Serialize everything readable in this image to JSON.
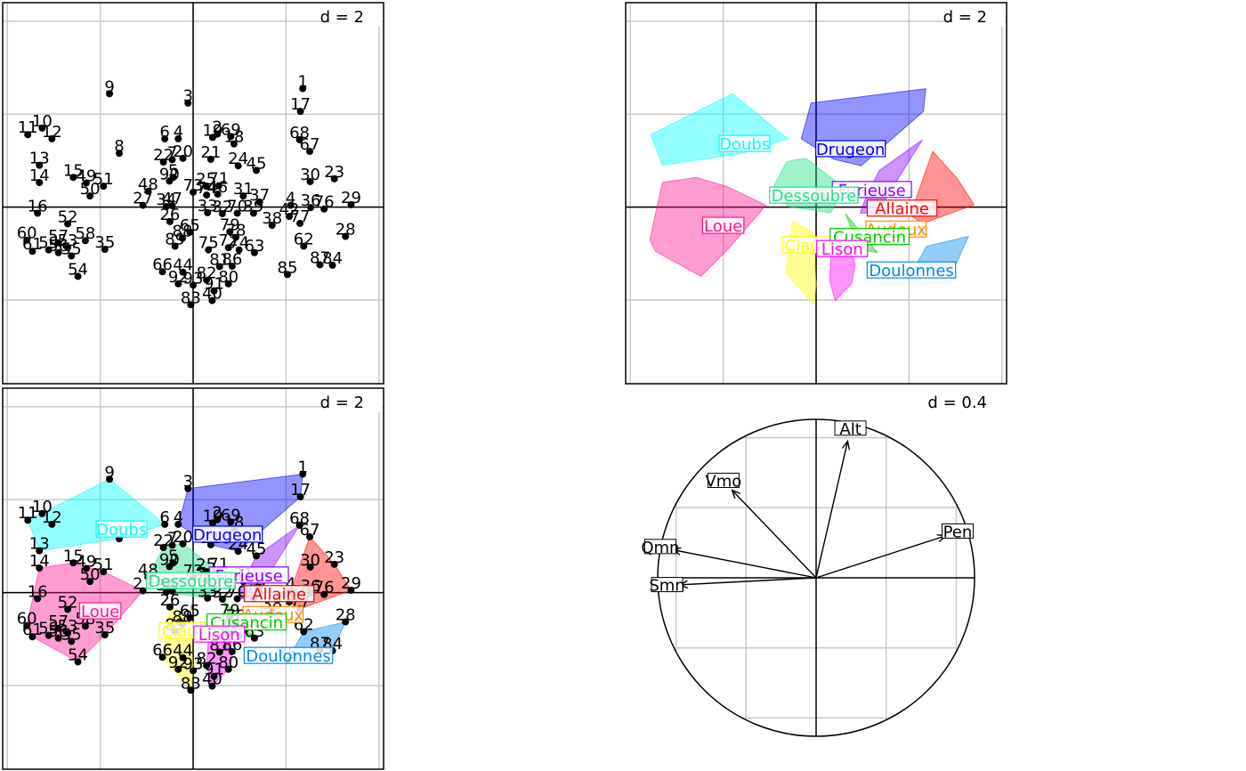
{
  "chart_data": [
    {
      "type": "scatter",
      "panel": "row scores",
      "scale_label": "d = 2",
      "grid": true,
      "xlim": [
        -4.1,
        4.1
      ],
      "ylim": [
        -3.8,
        4.4
      ],
      "points": [
        {
          "label": "1",
          "x": 2.36,
          "y": 2.55
        },
        {
          "label": "3",
          "x": -0.11,
          "y": 2.24
        },
        {
          "label": "9",
          "x": -1.8,
          "y": 2.44
        },
        {
          "label": "17",
          "x": 2.31,
          "y": 2.06
        },
        {
          "label": "10",
          "x": -3.25,
          "y": 1.7
        },
        {
          "label": "11",
          "x": -3.56,
          "y": 1.56
        },
        {
          "label": "12",
          "x": -3.04,
          "y": 1.47
        },
        {
          "label": "8",
          "x": -1.59,
          "y": 1.16
        },
        {
          "label": "6",
          "x": -0.61,
          "y": 1.47
        },
        {
          "label": "4",
          "x": -0.32,
          "y": 1.47
        },
        {
          "label": "7",
          "x": -0.45,
          "y": 1.02
        },
        {
          "label": "20",
          "x": -0.22,
          "y": 1.05
        },
        {
          "label": "2",
          "x": 0.52,
          "y": 1.57
        },
        {
          "label": "69",
          "x": 0.81,
          "y": 1.52
        },
        {
          "label": "19",
          "x": 0.42,
          "y": 1.5
        },
        {
          "label": "18",
          "x": 0.88,
          "y": 1.36
        },
        {
          "label": "68",
          "x": 2.29,
          "y": 1.45
        },
        {
          "label": "67",
          "x": 2.51,
          "y": 1.2
        },
        {
          "label": "21",
          "x": 0.38,
          "y": 1.03
        },
        {
          "label": "24",
          "x": 0.97,
          "y": 0.89
        },
        {
          "label": "45",
          "x": 1.36,
          "y": 0.79
        },
        {
          "label": "22",
          "x": -0.64,
          "y": 0.97
        },
        {
          "label": "5",
          "x": -0.43,
          "y": 0.64
        },
        {
          "label": "13",
          "x": -3.31,
          "y": 0.9
        },
        {
          "label": "14",
          "x": -3.31,
          "y": 0.53
        },
        {
          "label": "15",
          "x": -2.58,
          "y": 0.64
        },
        {
          "label": "49",
          "x": -2.3,
          "y": 0.52
        },
        {
          "label": "51",
          "x": -1.93,
          "y": 0.45
        },
        {
          "label": "50",
          "x": -2.22,
          "y": 0.24
        },
        {
          "label": "48",
          "x": -0.97,
          "y": 0.34
        },
        {
          "label": "90",
          "x": -0.51,
          "y": 0.56
        },
        {
          "label": "25",
          "x": 0.28,
          "y": 0.45
        },
        {
          "label": "71",
          "x": 0.55,
          "y": 0.46
        },
        {
          "label": "30",
          "x": 2.52,
          "y": 0.55
        },
        {
          "label": "23",
          "x": 3.04,
          "y": 0.61
        },
        {
          "label": "16",
          "x": -3.35,
          "y": -0.13
        },
        {
          "label": "52",
          "x": -2.7,
          "y": -0.36
        },
        {
          "label": "27",
          "x": -1.08,
          "y": 0.04
        },
        {
          "label": "34",
          "x": -0.58,
          "y": 0.01
        },
        {
          "label": "47",
          "x": -0.45,
          "y": 0.03
        },
        {
          "label": "73",
          "x": 0.0,
          "y": 0.32
        },
        {
          "label": "74",
          "x": 0.29,
          "y": 0.26
        },
        {
          "label": "46",
          "x": 0.53,
          "y": 0.28
        },
        {
          "label": "31",
          "x": 1.08,
          "y": 0.24
        },
        {
          "label": "37",
          "x": 1.43,
          "y": 0.11
        },
        {
          "label": "4b",
          "x": 2.1,
          "y": 0.04
        },
        {
          "label": "36",
          "x": 2.53,
          "y": -0.01
        },
        {
          "label": "29",
          "x": 3.4,
          "y": 0.05
        },
        {
          "label": "26",
          "x": -0.5,
          "y": -0.31
        },
        {
          "label": "33",
          "x": 0.31,
          "y": -0.12
        },
        {
          "label": "32",
          "x": 0.63,
          "y": -0.14
        },
        {
          "label": "70",
          "x": 0.95,
          "y": -0.13
        },
        {
          "label": "39",
          "x": 1.3,
          "y": -0.13
        },
        {
          "label": "42",
          "x": 2.07,
          "y": -0.2
        },
        {
          "label": "76",
          "x": 2.82,
          "y": -0.04
        },
        {
          "label": "38",
          "x": 1.7,
          "y": -0.39
        },
        {
          "label": "77",
          "x": 2.3,
          "y": -0.35
        },
        {
          "label": "28",
          "x": 3.28,
          "y": -0.63
        },
        {
          "label": "62",
          "x": 2.38,
          "y": -0.84
        },
        {
          "label": "60",
          "x": -3.58,
          "y": -0.71
        },
        {
          "label": "61",
          "x": -3.46,
          "y": -0.95
        },
        {
          "label": "57",
          "x": -2.9,
          "y": -0.77
        },
        {
          "label": "53",
          "x": -2.7,
          "y": -0.87
        },
        {
          "label": "58",
          "x": -2.32,
          "y": -0.72
        },
        {
          "label": "59",
          "x": -3.11,
          "y": -0.92
        },
        {
          "label": "55",
          "x": -2.62,
          "y": -1.05
        },
        {
          "label": "56",
          "x": -2.9,
          "y": -0.98
        },
        {
          "label": "35",
          "x": -1.9,
          "y": -0.91
        },
        {
          "label": "89",
          "x": -0.39,
          "y": -0.84
        },
        {
          "label": "88",
          "x": -0.23,
          "y": -0.67
        },
        {
          "label": "65",
          "x": -0.07,
          "y": -0.54
        },
        {
          "label": "79",
          "x": 0.79,
          "y": -0.53
        },
        {
          "label": "78",
          "x": 0.92,
          "y": -0.65
        },
        {
          "label": "75",
          "x": 0.33,
          "y": -0.92
        },
        {
          "label": "72",
          "x": 0.76,
          "y": -0.87
        },
        {
          "label": "74b",
          "x": 0.99,
          "y": -0.92
        },
        {
          "label": "63",
          "x": 1.32,
          "y": -0.98
        },
        {
          "label": "54",
          "x": -2.48,
          "y": -1.49
        },
        {
          "label": "66",
          "x": -0.66,
          "y": -1.39
        },
        {
          "label": "44",
          "x": -0.22,
          "y": -1.4
        },
        {
          "label": "81",
          "x": 0.57,
          "y": -1.28
        },
        {
          "label": "86",
          "x": 0.84,
          "y": -1.27
        },
        {
          "label": "92",
          "x": -0.32,
          "y": -1.65
        },
        {
          "label": "82",
          "x": 0.29,
          "y": -1.57
        },
        {
          "label": "80",
          "x": 0.76,
          "y": -1.65
        },
        {
          "label": "93",
          "x": 0.0,
          "y": -1.68
        },
        {
          "label": "91",
          "x": 0.45,
          "y": -1.8
        },
        {
          "label": "83",
          "x": -0.05,
          "y": -2.1
        },
        {
          "label": "40",
          "x": 0.41,
          "y": -2.01
        },
        {
          "label": "85",
          "x": 2.03,
          "y": -1.45
        },
        {
          "label": "87",
          "x": 2.73,
          "y": -1.24
        },
        {
          "label": "84",
          "x": 3.0,
          "y": -1.25
        }
      ]
    },
    {
      "type": "scatter",
      "panel": "group convex hulls",
      "scale_label": "d = 2",
      "grid": true,
      "xlim": [
        -4.1,
        4.1
      ],
      "ylim": [
        -3.8,
        4.4
      ],
      "groups": [
        {
          "name": "Doubs",
          "color": "#00FFFF",
          "center": [
            -1.54,
            1.35
          ]
        },
        {
          "name": "Drugeon",
          "color": "#0000FF",
          "center": [
            0.74,
            1.24
          ]
        },
        {
          "name": "Furieuse",
          "color": "#8800FF",
          "center": [
            1.2,
            0.36
          ]
        },
        {
          "name": "Dessoubre",
          "color": "#22DD88",
          "center": [
            -0.05,
            0.24
          ]
        },
        {
          "name": "Allaine",
          "color": "#FF0000",
          "center": [
            1.85,
            -0.04
          ]
        },
        {
          "name": "Loue",
          "color": "#FF1493",
          "center": [
            -2.0,
            -0.41
          ]
        },
        {
          "name": "Audeux",
          "color": "#FF8800",
          "center": [
            1.72,
            -0.49
          ]
        },
        {
          "name": "Clauge",
          "color": "#FFFF00",
          "center": [
            -0.08,
            -0.83
          ]
        },
        {
          "name": "Cusancin",
          "color": "#00CC00",
          "center": [
            1.15,
            -0.65
          ]
        },
        {
          "name": "Lison",
          "color": "#FF00FF",
          "center": [
            0.56,
            -0.91
          ]
        },
        {
          "name": "Doulonnes",
          "color": "#0088EE",
          "center": [
            2.05,
            -1.37
          ]
        }
      ]
    },
    {
      "type": "scatter",
      "panel": "row scores with group hulls",
      "scale_label": "d = 2",
      "grid": true,
      "xlim": [
        -4.1,
        4.1
      ],
      "ylim": [
        -3.8,
        4.4
      ]
    },
    {
      "type": "scatter",
      "panel": "correlation circle",
      "scale_label": "d = 0.4",
      "grid": true,
      "xlim": [
        -0.45,
        0.45
      ],
      "ylim": [
        -0.45,
        0.45
      ],
      "vectors": [
        {
          "label": "Alt",
          "x": 0.09,
          "y": 0.39
        },
        {
          "label": "Vmo",
          "x": -0.24,
          "y": 0.25
        },
        {
          "label": "Qmn",
          "x": -0.41,
          "y": 0.08
        },
        {
          "label": "Smn",
          "x": -0.39,
          "y": -0.02
        },
        {
          "label": "Pen",
          "x": 0.37,
          "y": 0.12
        }
      ]
    }
  ]
}
